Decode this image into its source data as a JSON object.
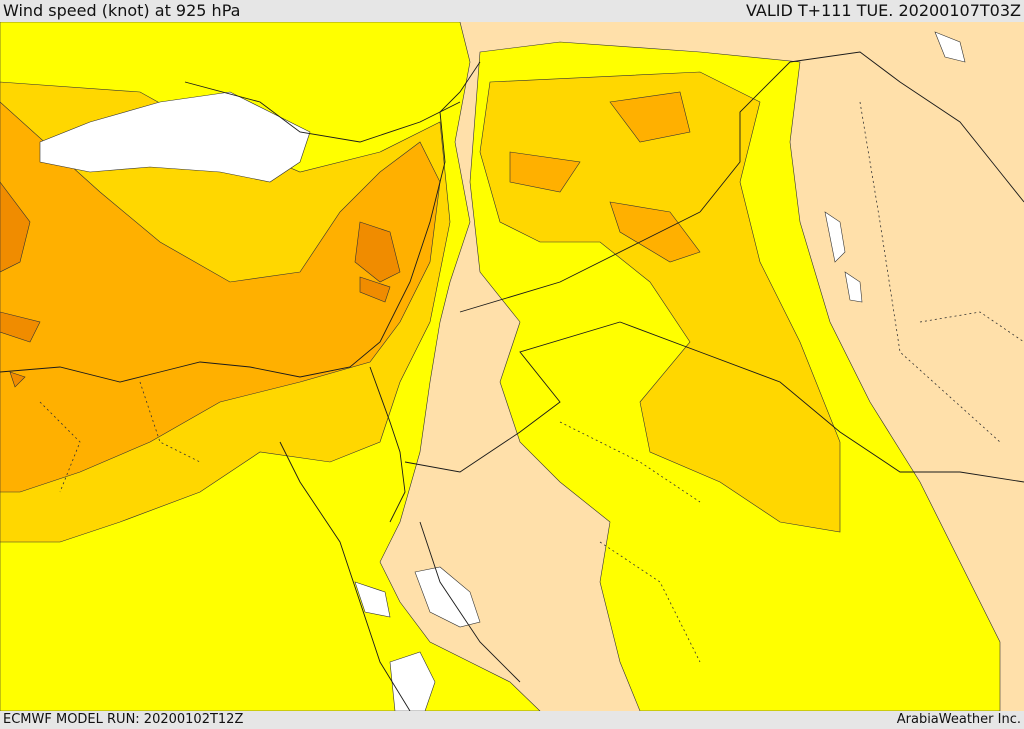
{
  "header": {
    "title": "Wind speed (knot) at 925 hPa",
    "valid": "VALID T+111 TUE. 20200107T03Z"
  },
  "footer": {
    "model_run": "ECMWF MODEL RUN: 20200102T12Z",
    "credit": "ArabiaWeather Inc."
  },
  "colors": {
    "calm": "#ffffff",
    "light": "#ffe0aa",
    "moderate": "#ffff00",
    "fresh": "#ffd700",
    "strong": "#ffb000",
    "gale": "#f08c00",
    "border": "#1a1a1a"
  }
}
